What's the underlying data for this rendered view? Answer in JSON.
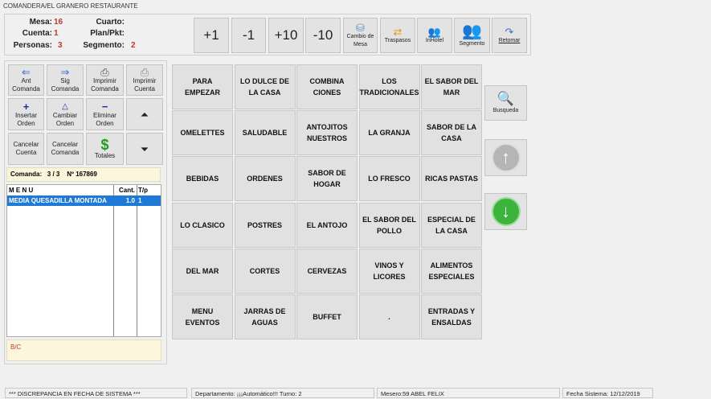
{
  "title": "COMANDERA/EL GRANERO RESTAURANTE",
  "info": {
    "mesa_label": "Mesa:",
    "mesa": "16",
    "cuenta_label": "Cuenta:",
    "cuenta": "1",
    "personas_label": "Personas:",
    "personas": "3",
    "cuarto_label": "Cuarto:",
    "plan_label": "Plan/Pkt:",
    "segmento_label": "Segmento:",
    "segmento": "2"
  },
  "top_buttons": {
    "plus1": "+1",
    "minus1": "-1",
    "plus10": "+10",
    "minus10": "-10",
    "cambio": "Cambio de Mesa",
    "traspasos": "Traspasos",
    "inhotel": "InHotel",
    "segmento": "Segmento",
    "retomar": "Retomar"
  },
  "actions": {
    "ant": "Ant Comanda",
    "sig": "Sig Comanda",
    "imprimir_comanda": "Imprimir Comanda",
    "imprimir_cuenta": "Imprimir Cuenta",
    "insertar": "Insertar Orden",
    "cambiar": "Cambiar Orden",
    "eliminar": "Eliminar Orden",
    "cancelar_cuenta": "Cancelar Cuenta",
    "cancelar_comanda": "Cancelar Comanda",
    "totales": "Totales",
    "totales_icon": "$"
  },
  "comanda": {
    "label": "Comanda:",
    "value": "3 / 3",
    "numero": "Nº 167869"
  },
  "order_table": {
    "headers": [
      "M E N U",
      "Cant.",
      "T/p"
    ],
    "rows": [
      {
        "menu": "MEDIA QUESADILLA MONTADA",
        "cant": "1.0",
        "tp": "1"
      }
    ]
  },
  "bc": "B/C",
  "categories": [
    "PARA EMPEZAR",
    "LO DULCE DE LA CASA",
    "COMBINA CIONES",
    "LOS TRADICIONALES",
    "EL SABOR DEL MAR",
    "OMELETTES",
    "SALUDABLE",
    "ANTOJITOS NUESTROS",
    "LA GRANJA",
    "SABOR DE LA CASA",
    "BEBIDAS",
    "ORDENES",
    "SABOR DE HOGAR",
    "LO FRESCO",
    "RICAS PASTAS",
    "LO CLASICO",
    "POSTRES",
    "EL ANTOJO",
    "EL SABOR DEL POLLO",
    "ESPECIAL DE LA CASA",
    "DEL MAR",
    "CORTES",
    "CERVEZAS",
    "VINOS Y LICORES",
    "ALIMENTOS ESPECIALES",
    "MENU EVENTOS",
    "JARRAS DE AGUAS",
    "BUFFET",
    ".",
    "ENTRADAS Y ENSALDAS"
  ],
  "busqueda": "Busqueda",
  "status": {
    "msg": "*** DISCREPANCIA EN FECHA DE SISTEMA ***",
    "depto": "Departamento: ¡¡¡Automático!!!  Turno: 2",
    "mesero": "Mesero:59 ABEL FELIX",
    "fecha": "Fecha Sistema: 12/12/2019"
  }
}
